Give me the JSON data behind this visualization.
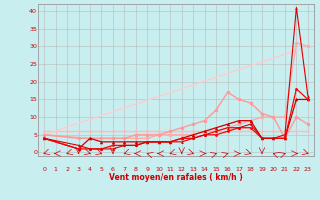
{
  "xlabel": "Vent moyen/en rafales ( km/h )",
  "background_color": "#c8eef0",
  "grid_color": "#bbbbbb",
  "xlim": [
    -0.5,
    23.5
  ],
  "ylim": [
    -1,
    42
  ],
  "yticks": [
    0,
    5,
    10,
    15,
    20,
    25,
    30,
    35,
    40
  ],
  "xticks": [
    0,
    1,
    2,
    3,
    4,
    5,
    6,
    7,
    8,
    9,
    10,
    11,
    12,
    13,
    14,
    15,
    16,
    17,
    18,
    19,
    20,
    21,
    22,
    23
  ],
  "series": [
    {
      "x": [
        0,
        1,
        2,
        3,
        4,
        5,
        6,
        7,
        8,
        9,
        10,
        11,
        12,
        13,
        14,
        15,
        16,
        17,
        18,
        19,
        20,
        21,
        22,
        23
      ],
      "y": [
        6,
        6,
        6,
        6,
        6,
        6,
        6,
        6,
        6,
        6,
        6,
        6,
        6,
        6,
        6,
        6,
        6,
        6,
        6,
        6,
        6,
        6,
        6,
        6
      ],
      "color": "#ffbbbb",
      "marker": "o",
      "markersize": 2,
      "linewidth": 1.0
    },
    {
      "x": [
        0,
        23
      ],
      "y": [
        5,
        30
      ],
      "color": "#ffcccc",
      "marker": "none",
      "markersize": 0,
      "linewidth": 1.0
    },
    {
      "x": [
        0,
        4,
        5,
        6,
        7,
        8,
        9,
        10,
        11,
        12,
        13,
        14,
        15,
        16,
        17,
        18,
        19,
        20,
        21,
        22,
        23
      ],
      "y": [
        5,
        4,
        4,
        4,
        4,
        4,
        4,
        5,
        5,
        5,
        5,
        6,
        6,
        7,
        8,
        9,
        10,
        10,
        10,
        31,
        30
      ],
      "color": "#ffaaaa",
      "marker": "o",
      "markersize": 2.5,
      "linewidth": 1.0
    },
    {
      "x": [
        0,
        3,
        4,
        5,
        6,
        7,
        8,
        9,
        10,
        11,
        12,
        13,
        14,
        15,
        16,
        17,
        18,
        19,
        20,
        21,
        22,
        23
      ],
      "y": [
        5,
        4,
        4,
        4,
        4,
        4,
        5,
        5,
        5,
        6,
        7,
        8,
        9,
        12,
        17,
        15,
        14,
        11,
        10,
        4,
        10,
        8
      ],
      "color": "#ff9999",
      "marker": "o",
      "markersize": 2.5,
      "linewidth": 1.0
    },
    {
      "x": [
        0,
        3,
        4,
        5,
        6,
        7,
        8,
        9,
        10,
        11,
        12,
        13,
        14,
        15,
        16,
        17,
        18,
        19,
        20,
        21,
        22,
        23
      ],
      "y": [
        4,
        1,
        4,
        3,
        3,
        3,
        3,
        3,
        3,
        3,
        4,
        5,
        6,
        7,
        8,
        9,
        9,
        4,
        4,
        4,
        15,
        15
      ],
      "color": "#cc0000",
      "marker": "^",
      "markersize": 2.5,
      "linewidth": 0.9
    },
    {
      "x": [
        0,
        3,
        4,
        5,
        6,
        7,
        8,
        9,
        10,
        11,
        12,
        13,
        14,
        15,
        16,
        17,
        18,
        19,
        20,
        21,
        22,
        23
      ],
      "y": [
        4,
        1,
        1,
        1,
        2,
        2,
        2,
        3,
        3,
        3,
        4,
        4,
        5,
        5,
        6,
        7,
        7,
        4,
        4,
        4,
        18,
        15
      ],
      "color": "#ff0000",
      "marker": "o",
      "markersize": 2,
      "linewidth": 0.9
    },
    {
      "x": [
        0,
        3,
        4,
        5,
        6,
        7,
        8,
        9,
        10,
        11,
        12,
        13,
        14,
        15,
        16,
        17,
        18,
        19,
        20,
        21,
        22,
        23
      ],
      "y": [
        4,
        2,
        1,
        1,
        1,
        2,
        2,
        3,
        3,
        3,
        3,
        4,
        5,
        6,
        7,
        7,
        8,
        4,
        4,
        5,
        41,
        16
      ],
      "color": "#dd0000",
      "marker": "^",
      "markersize": 2,
      "linewidth": 0.8
    }
  ],
  "wind_angles": [
    225,
    270,
    225,
    180,
    135,
    135,
    180,
    225,
    270,
    315,
    270,
    225,
    180,
    135,
    90,
    45,
    45,
    90,
    135,
    180,
    315,
    45,
    90,
    135
  ]
}
